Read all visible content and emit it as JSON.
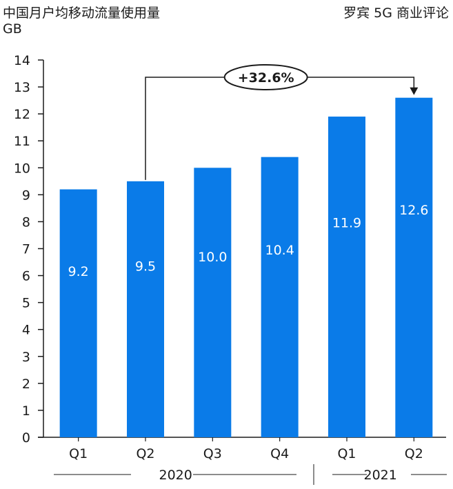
{
  "header": {
    "title": "中国月户均移动流量使用量",
    "unit": "GB",
    "source": "罗宾 5G 商业评论"
  },
  "chart_data": {
    "type": "bar",
    "categories": [
      "Q1",
      "Q2",
      "Q3",
      "Q4",
      "Q1",
      "Q2"
    ],
    "years": [
      {
        "label": "2020",
        "from": 0,
        "to": 3
      },
      {
        "label": "2021",
        "from": 4,
        "to": 5
      }
    ],
    "values": [
      9.2,
      9.5,
      10.0,
      10.4,
      11.9,
      12.6
    ],
    "value_labels": [
      "9.2",
      "9.5",
      "10.0",
      "10.4",
      "11.9",
      "12.6"
    ],
    "ylim": [
      0,
      14
    ],
    "yticks": [
      0,
      1,
      2,
      3,
      4,
      5,
      6,
      7,
      8,
      9,
      10,
      11,
      12,
      13,
      14
    ],
    "ylabel": "GB",
    "bar_color": "#0A7BE8",
    "annotation": {
      "label": "+32.6%",
      "from_index": 1,
      "to_index": 5
    },
    "grid": false
  }
}
